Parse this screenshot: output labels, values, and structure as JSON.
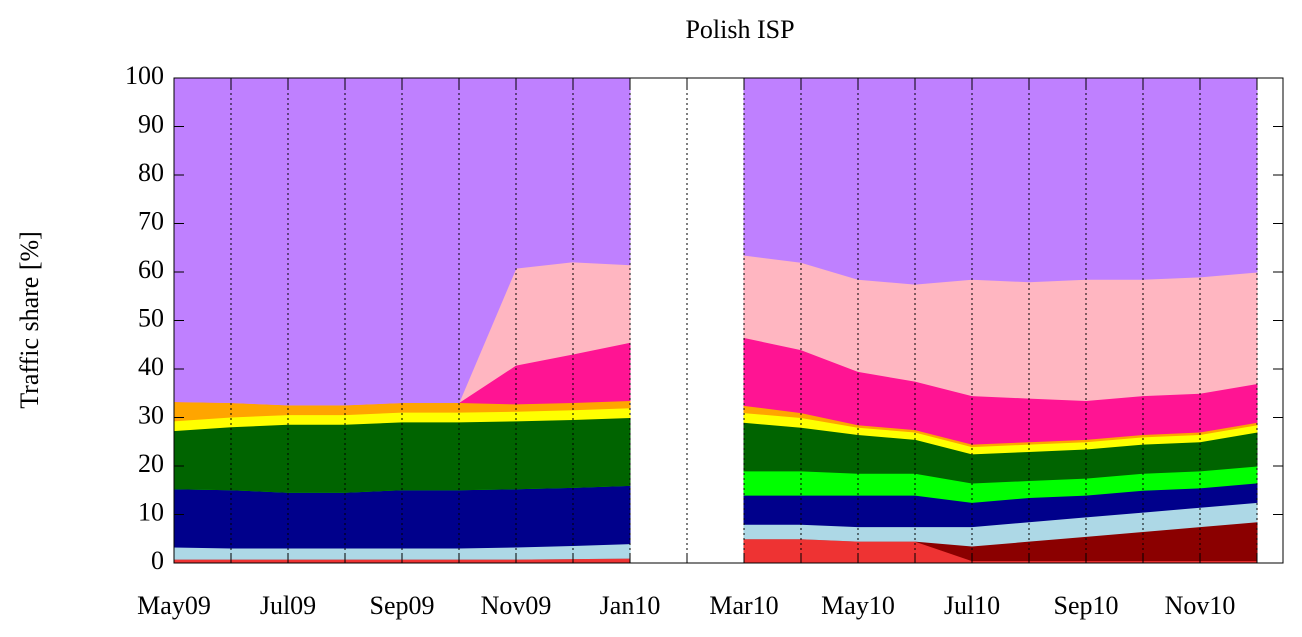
{
  "chart_data": {
    "type": "stacked_area",
    "title": "Polish ISP",
    "y_label": "Traffic share [%]",
    "categories": [
      "May09",
      null,
      "Jul09",
      null,
      "Sep09",
      null,
      "Nov09",
      null,
      "Jan10",
      null,
      "Mar10",
      null,
      "May10",
      null,
      "Jul10",
      null,
      "Sep10",
      null,
      "Nov10",
      null
    ],
    "ylim": [
      0,
      100
    ],
    "yticks": [
      0,
      10,
      20,
      30,
      40,
      50,
      60,
      70,
      80,
      90,
      100
    ],
    "grid": true,
    "series": [
      {
        "color": "#ee3333",
        "values": [
          0.8,
          0.8,
          0.8,
          0.8,
          0.8,
          0.8,
          0.8,
          0.9,
          1,
          null,
          5,
          5,
          4.5,
          4.5,
          0.5,
          0.5,
          0.5,
          0.5,
          0.5,
          0.5
        ]
      },
      {
        "color": "#8b0000",
        "values": [
          0,
          0,
          0,
          0,
          0,
          0,
          0,
          0,
          0,
          null,
          0,
          0,
          0,
          0,
          3,
          4,
          5,
          6,
          7,
          8
        ]
      },
      {
        "color": "#add8e6",
        "values": [
          2.5,
          2.3,
          2.3,
          2.3,
          2.3,
          2.3,
          2.5,
          2.7,
          3,
          null,
          3,
          3,
          3,
          3,
          4,
          4,
          4,
          4,
          4,
          4
        ]
      },
      {
        "color": "#00008b",
        "values": [
          12,
          12,
          11.5,
          11.5,
          12,
          12,
          12,
          12,
          12,
          null,
          6,
          6,
          6.5,
          6.5,
          5,
          5,
          4.5,
          4.5,
          4,
          4
        ]
      },
      {
        "color": "#00ff00",
        "values": [
          0,
          0,
          0,
          0,
          0,
          0,
          0,
          0,
          0,
          null,
          5,
          5,
          4.5,
          4.5,
          4,
          3.5,
          3.5,
          3.5,
          3.5,
          3.5
        ]
      },
      {
        "color": "#006400",
        "values": [
          12,
          13,
          14,
          14,
          14,
          14,
          14,
          14,
          14,
          null,
          10,
          9,
          8,
          7,
          6,
          6,
          6,
          6,
          6,
          7
        ]
      },
      {
        "color": "#ffff00",
        "values": [
          2,
          2,
          2,
          2,
          2,
          2,
          2,
          2,
          2,
          null,
          2,
          2,
          1.5,
          1.5,
          1.5,
          1.5,
          1.5,
          1.5,
          1.5,
          1.5
        ]
      },
      {
        "color": "#ffa500",
        "values": [
          4,
          3,
          2,
          2,
          2,
          2,
          1.5,
          1.5,
          1.5,
          null,
          1.5,
          1,
          0.5,
          0.5,
          0.5,
          0.5,
          0.5,
          0.5,
          0.5,
          0.5
        ]
      },
      {
        "color": "#ff1493",
        "values": [
          0,
          0,
          0,
          0,
          0,
          0,
          8,
          10,
          12,
          null,
          14,
          13,
          11,
          10,
          10,
          9,
          8,
          8,
          8,
          8
        ]
      },
      {
        "color": "#ffb6c1",
        "values": [
          0,
          0,
          0,
          0,
          0,
          0,
          20,
          19,
          16,
          null,
          17,
          18,
          19,
          20,
          24,
          24,
          25,
          24,
          24,
          23
        ]
      },
      {
        "color": "#bf80ff",
        "values": [
          66.7,
          66.9,
          67.4,
          67.4,
          66.9,
          66.9,
          39.2,
          37.9,
          38.5,
          null,
          36.5,
          38,
          41.5,
          42.5,
          41.5,
          42,
          41.5,
          41.5,
          41,
          40
        ]
      }
    ]
  }
}
